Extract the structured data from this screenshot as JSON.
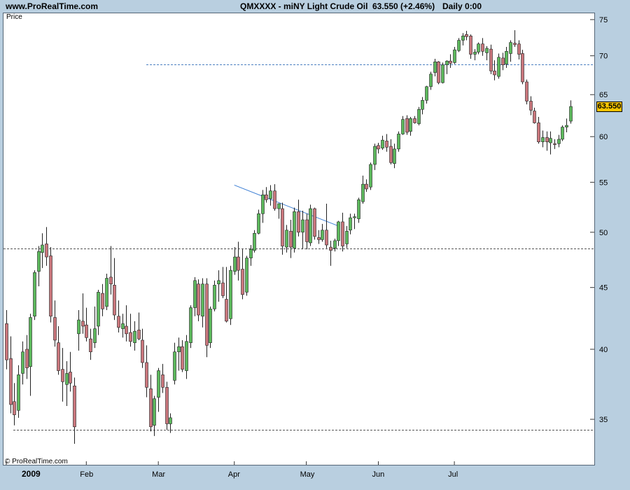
{
  "header": {
    "site": "www.ProRealTime.com",
    "symbol": "QMXXXX - miNY Light Crude Oil",
    "last": "63.550 (+2.46%)",
    "period": "Daily  0:00"
  },
  "panel": {
    "price_label": "Price",
    "copyright": "© ProRealTime.com"
  },
  "last_badge": "63.550",
  "colors": {
    "up": "#5cb85c",
    "down": "#c9767c",
    "trendline": "#3d7fd4",
    "dotted": "#555555",
    "dashed_blue": "#4a7fc1",
    "badge": "#f5c400"
  },
  "chart_data": {
    "type": "candlestick",
    "y_scale": "log",
    "y_ticks": [
      35,
      40,
      45,
      50,
      55,
      60,
      65,
      70,
      75
    ],
    "x_labels": [
      "2009",
      "Feb",
      "Mar",
      "Apr",
      "May",
      "Jun",
      "Jul"
    ],
    "x_label_index": [
      0,
      20,
      38,
      57,
      75,
      93,
      112
    ],
    "levels": [
      {
        "style": "dotted",
        "price": 48.5
      },
      {
        "style": "dotted",
        "price": 34.3
      },
      {
        "style": "dashed-blue",
        "price": 68.9,
        "from_index": 35
      }
    ],
    "trendline": {
      "from": [
        57,
        54.7
      ],
      "to": [
        83,
        50.6
      ]
    },
    "candles": [
      [
        42.0,
        43.1,
        38.5,
        39.2
      ],
      [
        39.3,
        41.0,
        35.4,
        36.0
      ],
      [
        36.2,
        37.5,
        34.6,
        35.3
      ],
      [
        35.6,
        38.8,
        35.1,
        38.1
      ],
      [
        38.2,
        40.6,
        37.4,
        39.8
      ],
      [
        40.0,
        41.1,
        37.8,
        38.6
      ],
      [
        38.7,
        42.8,
        36.6,
        42.5
      ],
      [
        42.6,
        46.5,
        42.3,
        46.3
      ],
      [
        46.4,
        48.7,
        45.1,
        48.2
      ],
      [
        48.1,
        49.9,
        46.7,
        48.8
      ],
      [
        48.9,
        50.5,
        46.9,
        47.7
      ],
      [
        47.8,
        48.6,
        42.1,
        42.6
      ],
      [
        42.5,
        43.9,
        40.2,
        40.7
      ],
      [
        40.5,
        41.8,
        38.1,
        38.4
      ],
      [
        38.5,
        40.1,
        36.2,
        37.6
      ],
      [
        37.4,
        39.1,
        35.9,
        38.2
      ],
      [
        38.3,
        39.8,
        36.9,
        37.5
      ],
      [
        37.3,
        37.9,
        33.4,
        34.5
      ],
      [
        41.2,
        43.1,
        39.9,
        42.3
      ],
      [
        42.2,
        44.5,
        41.2,
        41.8
      ],
      [
        41.9,
        43.3,
        40.6,
        40.9
      ],
      [
        40.8,
        41.6,
        39.2,
        39.8
      ],
      [
        40.5,
        43.4,
        40.1,
        41.6
      ],
      [
        41.8,
        44.8,
        41.1,
        44.6
      ],
      [
        44.5,
        45.3,
        42.6,
        43.2
      ],
      [
        43.4,
        46.2,
        43.1,
        45.8
      ],
      [
        45.9,
        48.7,
        44.4,
        45.3
      ],
      [
        45.2,
        47.6,
        42.3,
        42.7
      ],
      [
        42.6,
        43.9,
        41.3,
        41.7
      ],
      [
        41.6,
        42.8,
        40.9,
        42.0
      ],
      [
        41.8,
        43.5,
        40.6,
        41.2
      ],
      [
        41.3,
        42.8,
        40.2,
        40.6
      ],
      [
        40.5,
        42.2,
        39.9,
        41.4
      ],
      [
        41.5,
        42.9,
        40.7,
        40.8
      ],
      [
        40.7,
        41.6,
        38.6,
        39.0
      ],
      [
        39.0,
        40.3,
        36.5,
        37.2
      ],
      [
        37.1,
        38.1,
        34.2,
        34.5
      ],
      [
        34.6,
        36.6,
        33.9,
        36.4
      ],
      [
        36.5,
        38.6,
        35.5,
        38.4
      ],
      [
        38.1,
        38.9,
        36.8,
        37.2
      ],
      [
        37.2,
        37.6,
        34.3,
        34.7
      ],
      [
        34.7,
        35.4,
        34.1,
        35.1
      ],
      [
        37.7,
        40.5,
        37.4,
        39.8
      ],
      [
        39.8,
        40.9,
        38.4,
        40.2
      ],
      [
        40.2,
        40.7,
        38.3,
        38.5
      ],
      [
        38.4,
        41.1,
        37.8,
        40.6
      ],
      [
        40.5,
        43.5,
        40.1,
        43.3
      ],
      [
        43.3,
        45.9,
        42.6,
        45.6
      ],
      [
        45.3,
        45.7,
        42.2,
        42.7
      ],
      [
        42.6,
        45.8,
        41.7,
        45.3
      ],
      [
        45.3,
        45.8,
        39.4,
        40.3
      ],
      [
        40.5,
        43.4,
        40.1,
        43.2
      ],
      [
        43.2,
        45.6,
        43.0,
        45.2
      ],
      [
        45.3,
        46.5,
        43.8,
        45.6
      ],
      [
        45.4,
        46.8,
        44.1,
        44.3
      ],
      [
        44.0,
        46.8,
        42.1,
        42.2
      ],
      [
        42.4,
        46.9,
        41.9,
        46.5
      ],
      [
        46.4,
        48.6,
        46.1,
        47.7
      ],
      [
        47.7,
        49.1,
        45.6,
        46.5
      ],
      [
        46.6,
        48.4,
        44.0,
        44.4
      ],
      [
        44.6,
        47.8,
        44.3,
        47.6
      ],
      [
        47.6,
        48.8,
        46.9,
        48.4
      ],
      [
        48.3,
        50.2,
        48.1,
        49.9
      ],
      [
        49.9,
        52.2,
        49.8,
        51.8
      ],
      [
        51.8,
        54.2,
        50.9,
        53.7
      ],
      [
        53.7,
        54.5,
        52.9,
        53.2
      ],
      [
        53.3,
        54.7,
        52.6,
        54.1
      ],
      [
        54.1,
        54.8,
        52.1,
        52.3
      ],
      [
        52.3,
        52.7,
        51.3,
        52.8
      ],
      [
        52.3,
        52.9,
        47.9,
        48.7
      ],
      [
        48.6,
        50.7,
        48.1,
        50.2
      ],
      [
        50.1,
        51.2,
        47.6,
        48.6
      ],
      [
        48.5,
        52.4,
        48.1,
        52.0
      ],
      [
        52.0,
        53.2,
        49.6,
        50.0
      ],
      [
        50.0,
        52.1,
        48.4,
        51.2
      ],
      [
        51.2,
        51.8,
        48.4,
        49.1
      ],
      [
        49.0,
        52.7,
        48.7,
        52.3
      ],
      [
        52.3,
        52.4,
        49.3,
        49.6
      ],
      [
        49.5,
        50.2,
        48.9,
        49.3
      ],
      [
        49.3,
        50.8,
        49.1,
        50.2
      ],
      [
        50.2,
        52.8,
        48.5,
        48.8
      ],
      [
        48.6,
        49.2,
        46.9,
        48.3
      ],
      [
        48.5,
        49.4,
        48.2,
        49.2
      ],
      [
        49.2,
        51.1,
        48.7,
        51.0
      ],
      [
        51.0,
        51.9,
        48.2,
        48.7
      ],
      [
        48.9,
        50.6,
        48.5,
        50.1
      ],
      [
        50.2,
        51.8,
        49.8,
        51.4
      ],
      [
        51.4,
        51.8,
        50.3,
        51.5
      ],
      [
        51.3,
        53.4,
        50.9,
        53.2
      ],
      [
        53.0,
        55.7,
        52.8,
        54.8
      ],
      [
        54.8,
        55.3,
        54.0,
        54.3
      ],
      [
        54.5,
        57.1,
        54.2,
        56.9
      ],
      [
        56.9,
        59.2,
        56.3,
        58.9
      ],
      [
        59.0,
        59.3,
        58.1,
        58.6
      ],
      [
        58.7,
        60.1,
        58.5,
        59.6
      ],
      [
        59.5,
        60.3,
        58.3,
        58.8
      ],
      [
        58.9,
        59.7,
        56.9,
        57.1
      ],
      [
        57.0,
        59.2,
        56.5,
        58.6
      ],
      [
        58.6,
        60.6,
        58.3,
        60.3
      ],
      [
        60.3,
        62.4,
        60.2,
        62.0
      ],
      [
        62.1,
        62.5,
        60.2,
        60.5
      ],
      [
        60.6,
        62.3,
        60.1,
        62.1
      ],
      [
        62.1,
        62.4,
        61.5,
        61.6
      ],
      [
        61.5,
        63.5,
        61.3,
        63.2
      ],
      [
        63.2,
        64.7,
        62.6,
        64.3
      ],
      [
        64.3,
        66.1,
        63.9,
        66.0
      ],
      [
        66.0,
        67.9,
        65.6,
        67.6
      ],
      [
        67.8,
        69.6,
        67.3,
        69.2
      ],
      [
        69.2,
        69.3,
        66.3,
        66.5
      ],
      [
        66.5,
        69.1,
        66.4,
        68.8
      ],
      [
        68.8,
        69.4,
        67.6,
        69.3
      ],
      [
        69.3,
        70.2,
        68.4,
        69.0
      ],
      [
        69.1,
        71.2,
        68.9,
        70.8
      ],
      [
        70.7,
        72.4,
        70.5,
        72.1
      ],
      [
        72.1,
        73.1,
        71.4,
        72.7
      ],
      [
        72.9,
        73.4,
        72.1,
        72.6
      ],
      [
        72.7,
        72.9,
        69.6,
        70.2
      ],
      [
        70.2,
        70.9,
        69.4,
        70.5
      ],
      [
        70.5,
        71.8,
        70.2,
        71.6
      ],
      [
        71.6,
        72.4,
        70.0,
        70.6
      ],
      [
        70.4,
        71.3,
        69.4,
        71.0
      ],
      [
        70.9,
        71.5,
        67.6,
        68.0
      ],
      [
        68.0,
        69.4,
        66.8,
        67.5
      ],
      [
        67.3,
        70.3,
        67.0,
        69.8
      ],
      [
        69.7,
        70.4,
        68.1,
        68.8
      ],
      [
        68.9,
        71.2,
        68.4,
        70.6
      ],
      [
        70.3,
        72.1,
        69.2,
        71.8
      ],
      [
        71.7,
        73.5,
        71.2,
        71.5
      ],
      [
        71.6,
        72.1,
        69.5,
        70.2
      ],
      [
        70.3,
        70.8,
        66.3,
        66.6
      ],
      [
        66.6,
        66.9,
        63.8,
        64.2
      ],
      [
        64.2,
        64.8,
        62.5,
        63.1
      ],
      [
        63.0,
        63.4,
        61.5,
        61.6
      ],
      [
        61.6,
        62.3,
        59.2,
        59.4
      ],
      [
        59.4,
        60.7,
        58.8,
        59.9
      ],
      [
        59.9,
        60.6,
        58.4,
        59.4
      ],
      [
        59.3,
        60.6,
        58.0,
        59.8
      ],
      [
        59.2,
        59.7,
        58.6,
        59.1
      ],
      [
        59.2,
        60.2,
        58.8,
        59.7
      ],
      [
        59.7,
        61.3,
        59.5,
        61.1
      ],
      [
        61.1,
        62.1,
        60.5,
        61.3
      ],
      [
        61.8,
        64.3,
        61.5,
        63.55
      ]
    ]
  }
}
